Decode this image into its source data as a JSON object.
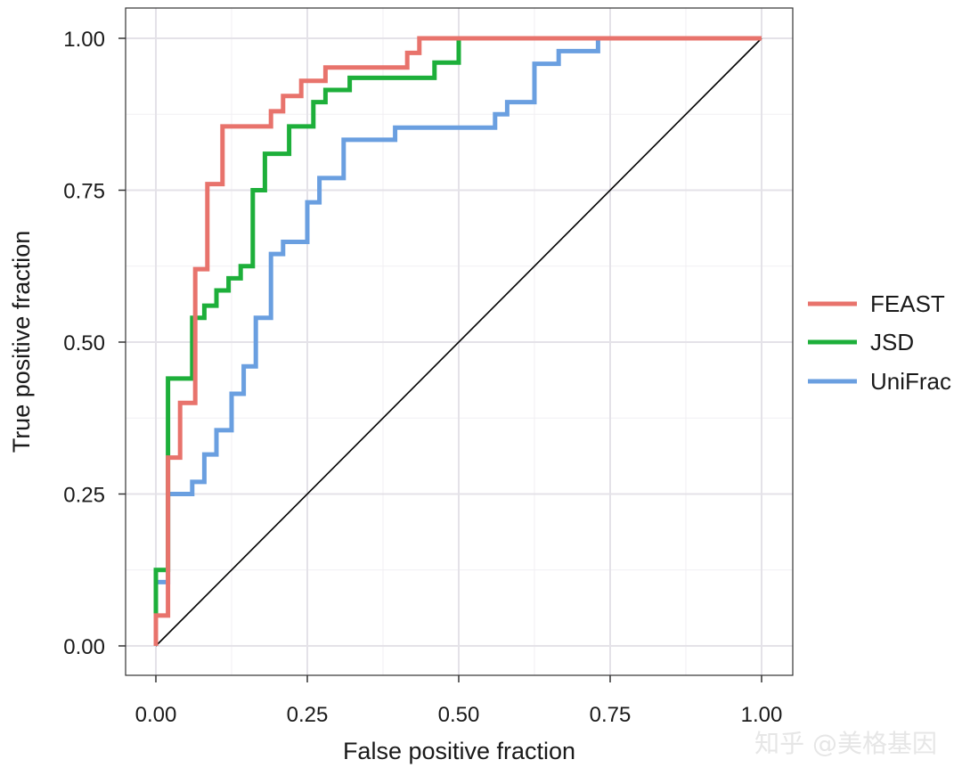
{
  "watermark": "知乎 @美格基因",
  "chart_data": {
    "type": "line",
    "title": "",
    "xlabel": "False positive fraction",
    "ylabel": "True positive fraction",
    "xlim": [
      0,
      1
    ],
    "ylim": [
      0,
      1
    ],
    "xticks": [
      0,
      0.25,
      0.5,
      0.75,
      1
    ],
    "yticks": [
      0,
      0.25,
      0.5,
      0.75,
      1
    ],
    "xtick_labels": [
      "0.00",
      "0.25",
      "0.50",
      "0.75",
      "1.00"
    ],
    "ytick_labels": [
      "0.00",
      "0.25",
      "0.50",
      "0.75",
      "1.00"
    ],
    "grid": true,
    "legend_position": "right",
    "reference_line": {
      "x": [
        0,
        1
      ],
      "y": [
        0,
        1
      ],
      "color": "#000000"
    },
    "series": [
      {
        "name": "FEAST",
        "color": "#E8736C",
        "step": true,
        "points": [
          [
            0,
            0
          ],
          [
            0,
            0.05
          ],
          [
            0.02,
            0.05
          ],
          [
            0.02,
            0.31
          ],
          [
            0.04,
            0.31
          ],
          [
            0.04,
            0.4
          ],
          [
            0.065,
            0.4
          ],
          [
            0.065,
            0.62
          ],
          [
            0.085,
            0.62
          ],
          [
            0.085,
            0.76
          ],
          [
            0.11,
            0.76
          ],
          [
            0.11,
            0.855
          ],
          [
            0.19,
            0.855
          ],
          [
            0.19,
            0.88
          ],
          [
            0.21,
            0.88
          ],
          [
            0.21,
            0.905
          ],
          [
            0.24,
            0.905
          ],
          [
            0.24,
            0.93
          ],
          [
            0.28,
            0.93
          ],
          [
            0.28,
            0.952
          ],
          [
            0.415,
            0.952
          ],
          [
            0.415,
            0.976
          ],
          [
            0.435,
            0.976
          ],
          [
            0.435,
            1.0
          ],
          [
            1.0,
            1.0
          ]
        ]
      },
      {
        "name": "JSD",
        "color": "#1DAF3A",
        "step": true,
        "points": [
          [
            0,
            0
          ],
          [
            0,
            0.125
          ],
          [
            0.02,
            0.125
          ],
          [
            0.02,
            0.44
          ],
          [
            0.06,
            0.44
          ],
          [
            0.06,
            0.54
          ],
          [
            0.08,
            0.54
          ],
          [
            0.08,
            0.56
          ],
          [
            0.1,
            0.56
          ],
          [
            0.1,
            0.585
          ],
          [
            0.12,
            0.585
          ],
          [
            0.12,
            0.605
          ],
          [
            0.14,
            0.605
          ],
          [
            0.14,
            0.625
          ],
          [
            0.16,
            0.625
          ],
          [
            0.16,
            0.75
          ],
          [
            0.18,
            0.75
          ],
          [
            0.18,
            0.81
          ],
          [
            0.22,
            0.81
          ],
          [
            0.22,
            0.855
          ],
          [
            0.26,
            0.855
          ],
          [
            0.26,
            0.895
          ],
          [
            0.28,
            0.895
          ],
          [
            0.28,
            0.915
          ],
          [
            0.32,
            0.915
          ],
          [
            0.32,
            0.935
          ],
          [
            0.46,
            0.935
          ],
          [
            0.46,
            0.96
          ],
          [
            0.5,
            0.96
          ],
          [
            0.5,
            1.0
          ],
          [
            1.0,
            1.0
          ]
        ]
      },
      {
        "name": "UniFrac",
        "color": "#6A9FE0",
        "step": true,
        "points": [
          [
            0,
            0
          ],
          [
            0,
            0.105
          ],
          [
            0.02,
            0.105
          ],
          [
            0.02,
            0.25
          ],
          [
            0.06,
            0.25
          ],
          [
            0.06,
            0.27
          ],
          [
            0.08,
            0.27
          ],
          [
            0.08,
            0.315
          ],
          [
            0.1,
            0.315
          ],
          [
            0.1,
            0.355
          ],
          [
            0.125,
            0.355
          ],
          [
            0.125,
            0.415
          ],
          [
            0.145,
            0.415
          ],
          [
            0.145,
            0.46
          ],
          [
            0.165,
            0.46
          ],
          [
            0.165,
            0.54
          ],
          [
            0.19,
            0.54
          ],
          [
            0.19,
            0.645
          ],
          [
            0.21,
            0.645
          ],
          [
            0.21,
            0.665
          ],
          [
            0.25,
            0.665
          ],
          [
            0.25,
            0.73
          ],
          [
            0.27,
            0.73
          ],
          [
            0.27,
            0.77
          ],
          [
            0.31,
            0.77
          ],
          [
            0.31,
            0.833
          ],
          [
            0.395,
            0.833
          ],
          [
            0.395,
            0.853
          ],
          [
            0.56,
            0.853
          ],
          [
            0.56,
            0.875
          ],
          [
            0.58,
            0.875
          ],
          [
            0.58,
            0.895
          ],
          [
            0.625,
            0.895
          ],
          [
            0.625,
            0.958
          ],
          [
            0.665,
            0.958
          ],
          [
            0.665,
            0.979
          ],
          [
            0.73,
            0.979
          ],
          [
            0.73,
            1.0
          ],
          [
            1.0,
            1.0
          ]
        ]
      }
    ]
  }
}
